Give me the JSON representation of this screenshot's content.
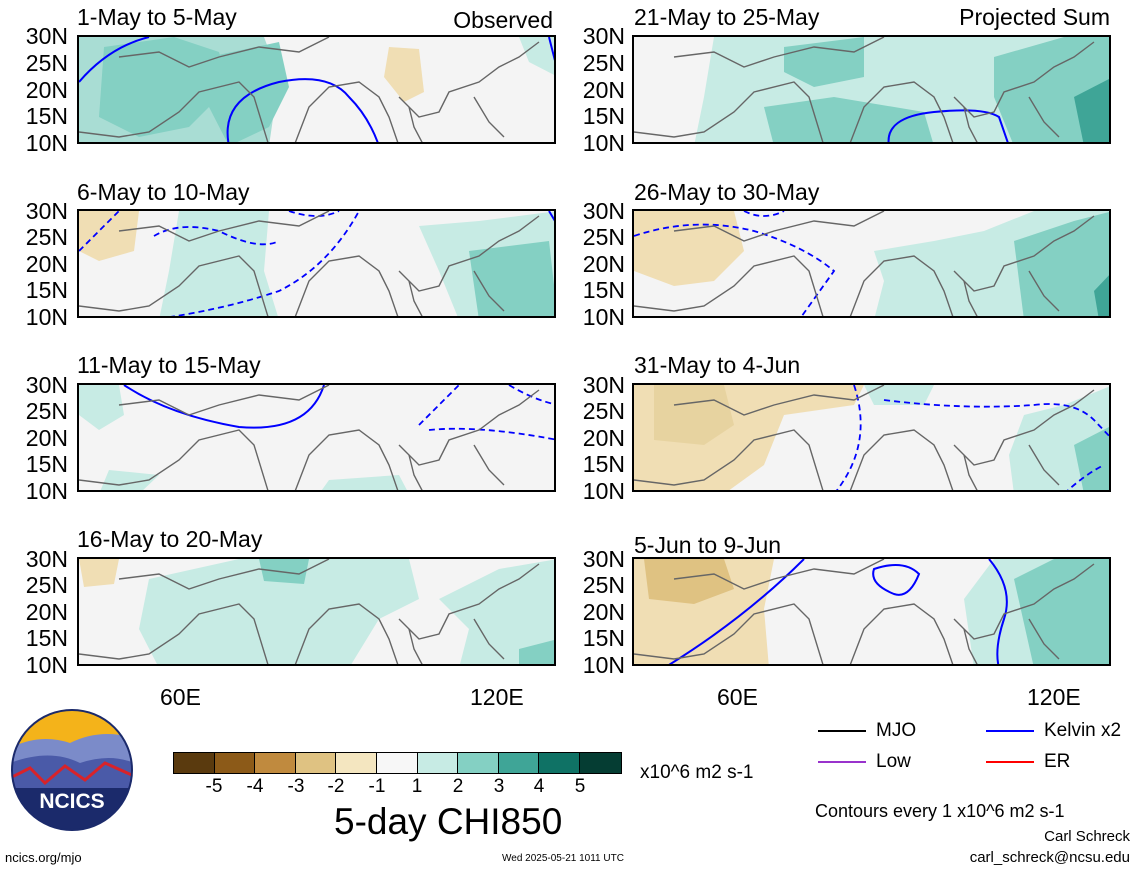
{
  "panels": {
    "left": [
      {
        "period": "1-May to 5-May",
        "tag": "Observed"
      },
      {
        "period": "6-May to 10-May",
        "tag": ""
      },
      {
        "period": "11-May to 15-May",
        "tag": ""
      },
      {
        "period": "16-May to 20-May",
        "tag": ""
      }
    ],
    "right": [
      {
        "period": "21-May to 25-May",
        "tag": "Projected Sum"
      },
      {
        "period": "26-May to 30-May",
        "tag": ""
      },
      {
        "period": "31-May to 4-Jun",
        "tag": ""
      },
      {
        "period": "5-Jun to 9-Jun",
        "tag": ""
      }
    ]
  },
  "axes": {
    "lat_labels": [
      "30N",
      "25N",
      "20N",
      "15N",
      "10N"
    ],
    "lon_labels": [
      "60E",
      "120E"
    ]
  },
  "colorbar": {
    "ticks": [
      "-5",
      "-4",
      "-3",
      "-2",
      "-1",
      "1",
      "2",
      "3",
      "4",
      "5"
    ],
    "colors": [
      "#5a3a0e",
      "#8c5a18",
      "#c08a3e",
      "#dfc282",
      "#f4e6c0",
      "#f7f7f7",
      "#c7ebe4",
      "#84d0c3",
      "#3fa597",
      "#0f7265",
      "#053d33"
    ],
    "units": "x10^6 m2 s-1",
    "title": "5-day CHI850"
  },
  "legend": {
    "mjo": "MJO",
    "kelvin": "Kelvin x2",
    "low": "Low",
    "er": "ER",
    "colors": {
      "mjo": "#000000",
      "kelvin": "#0000ff",
      "low": "#9933cc",
      "er": "#ff0000"
    },
    "contour_note": "Contours every 1 x10^6 m2 s-1"
  },
  "footer": {
    "url": "ncics.org/mjo",
    "timestamp": "Wed 2025-05-21 1011 UTC",
    "author": "Carl Schreck",
    "email": "carl_schreck@ncsu.edu",
    "logo_text": "NCICS"
  }
}
